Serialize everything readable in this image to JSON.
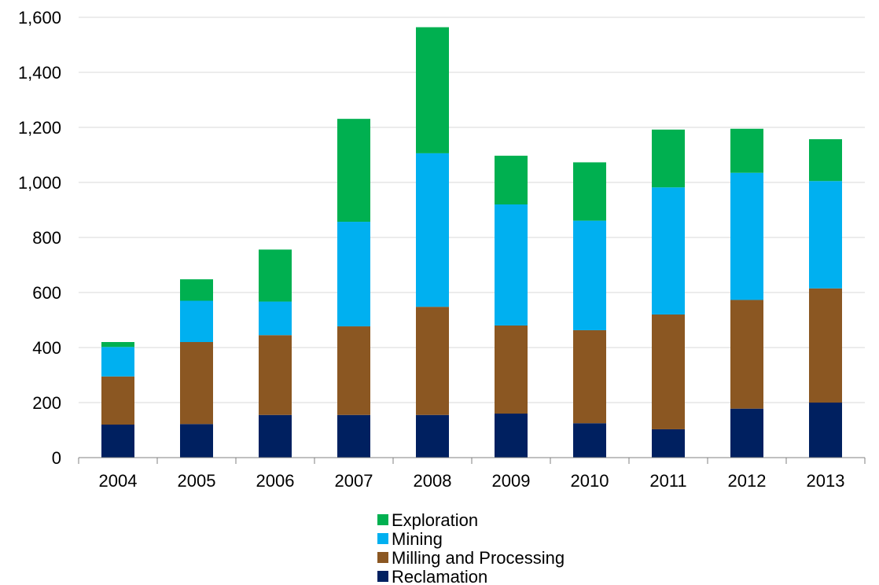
{
  "chart_data": {
    "type": "bar",
    "stacked": true,
    "categories": [
      "2004",
      "2005",
      "2006",
      "2007",
      "2008",
      "2009",
      "2010",
      "2011",
      "2012",
      "2013"
    ],
    "series": [
      {
        "name": "Reclamation",
        "color": "#002060",
        "values": [
          120,
          122,
          155,
          155,
          155,
          160,
          125,
          103,
          178,
          200
        ]
      },
      {
        "name": "Milling and Processing",
        "color": "#8B5722",
        "values": [
          175,
          298,
          290,
          322,
          393,
          320,
          338,
          417,
          395,
          415
        ]
      },
      {
        "name": "Mining",
        "color": "#00B0F0",
        "values": [
          107,
          150,
          122,
          380,
          558,
          440,
          398,
          462,
          462,
          390
        ]
      },
      {
        "name": "Exploration",
        "color": "#00B050",
        "values": [
          18,
          78,
          189,
          374,
          458,
          177,
          212,
          210,
          160,
          152
        ]
      }
    ],
    "ylim": [
      0,
      1600
    ],
    "yticks": [
      0,
      200,
      400,
      600,
      800,
      1000,
      1200,
      1400,
      1600
    ],
    "ytick_labels": [
      "0",
      "200",
      "400",
      "600",
      "800",
      "1,000",
      "1,200",
      "1,400",
      "1,600"
    ],
    "grid": true,
    "legend_position": "bottom",
    "legend_order": [
      "Exploration",
      "Mining",
      "Milling and Processing",
      "Reclamation"
    ]
  }
}
